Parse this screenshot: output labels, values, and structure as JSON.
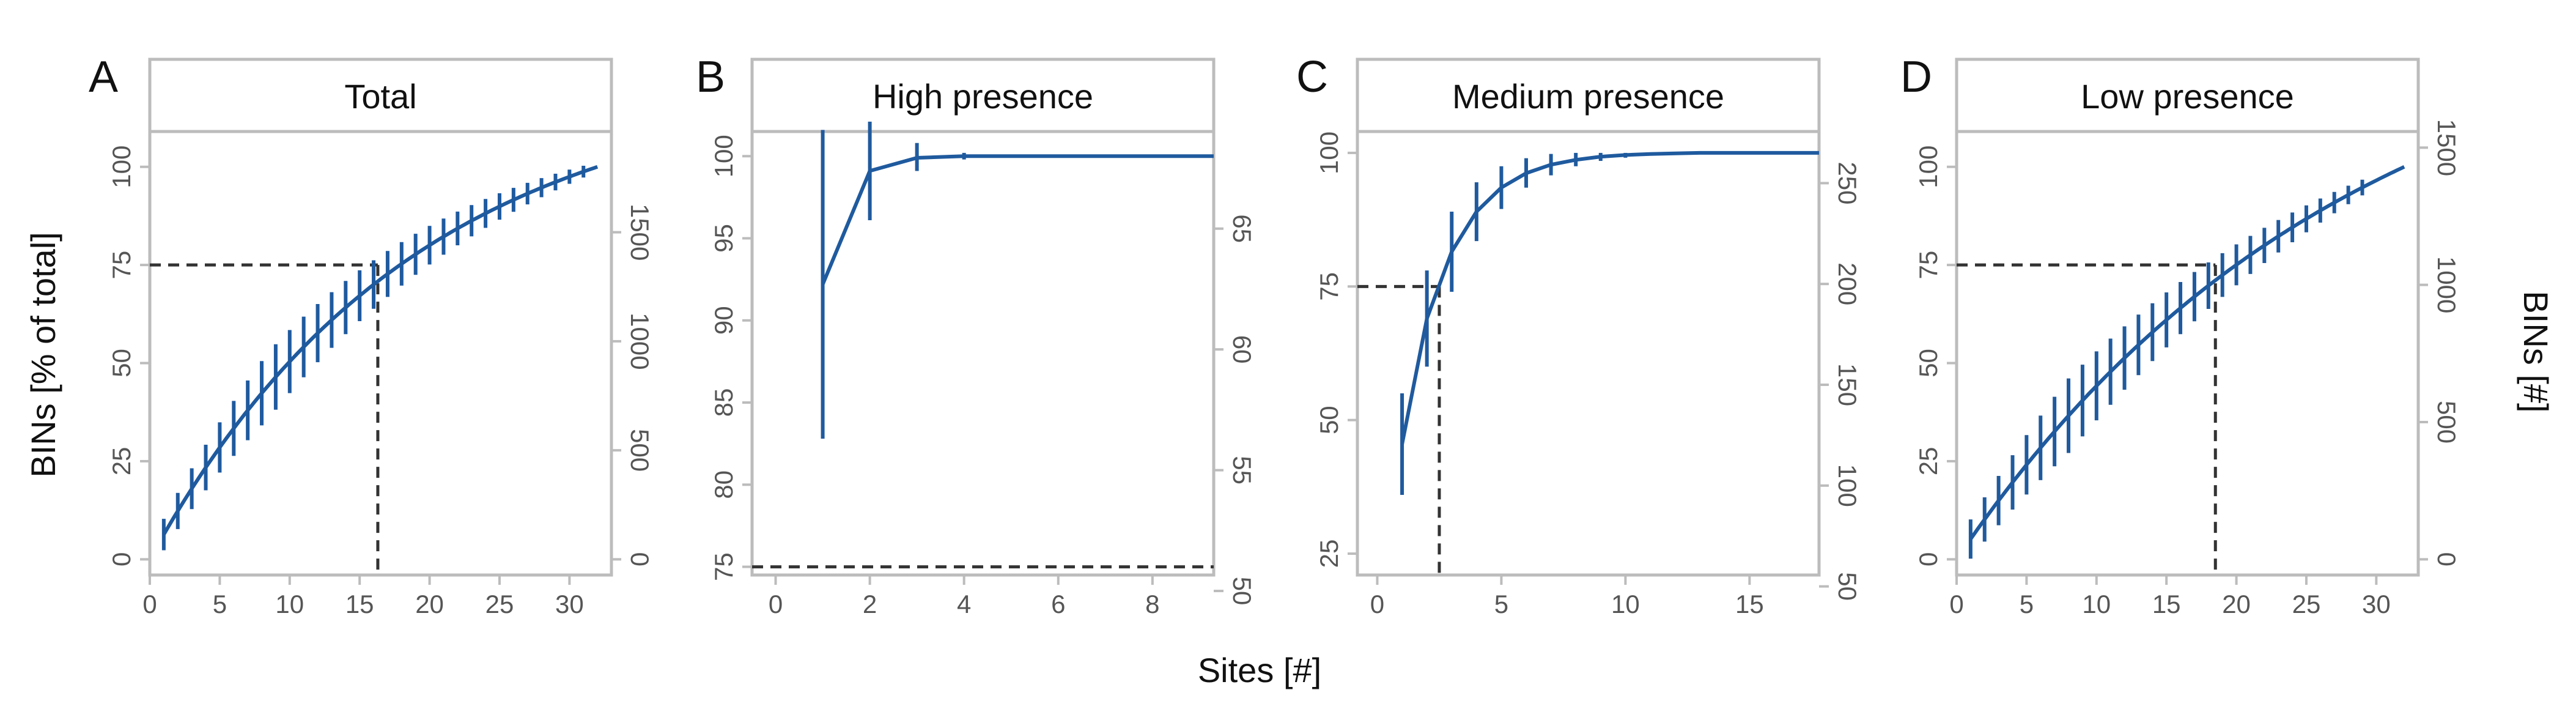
{
  "figure": {
    "shared_xlabel": "Sites [#]",
    "shared_ylabel_left": "BINs [% of total]",
    "shared_ylabel_right": "BINs [#]",
    "line_color": "#1f5a9e",
    "frame_color": "#bcbcbc",
    "tick_color": "#555555",
    "dash_color": "#333333"
  },
  "chart_data": [
    {
      "type": "line",
      "panel_letter": "A",
      "title": "Total",
      "xlim": [
        0,
        33
      ],
      "xticks": [
        0,
        5,
        10,
        15,
        20,
        25,
        30
      ],
      "ylim": [
        -4,
        109
      ],
      "yticks": [
        0,
        25,
        50,
        75,
        100
      ],
      "right_axis": {
        "label_ticks": [
          0,
          500,
          1000,
          1500
        ],
        "scale_max_value": 1800,
        "scale_max_percent": 100
      },
      "curve": {
        "k": 0.053,
        "x_start": 1,
        "x_end": 32
      },
      "error_bars": {
        "x_start": 1,
        "x_end": 31,
        "half_width_at_start": 4,
        "half_width_peak": 8.5,
        "half_width_end": 1.5
      },
      "threshold_line": {
        "y": 75,
        "x": 16.3
      }
    },
    {
      "type": "line",
      "panel_letter": "B",
      "title": "High presence",
      "xlim": [
        -0.5,
        9.3
      ],
      "xticks": [
        0,
        2,
        4,
        6,
        8
      ],
      "ylim": [
        74.5,
        101.5
      ],
      "yticks": [
        75,
        80,
        85,
        90,
        95,
        100
      ],
      "right_axis": {
        "label_ticks": [
          50,
          55,
          60,
          65
        ],
        "scale_max_value": 68,
        "scale_max_percent": 100
      },
      "points": [
        {
          "x": 1,
          "y": 92.2
        },
        {
          "x": 2,
          "y": 99.1
        },
        {
          "x": 3,
          "y": 99.9
        },
        {
          "x": 4,
          "y": 100
        },
        {
          "x": 9.3,
          "y": 100
        }
      ],
      "error_bars": [
        {
          "x": 1,
          "low": 82.8,
          "high": 101.6
        },
        {
          "x": 2,
          "low": 96.1,
          "high": 102.1
        },
        {
          "x": 3,
          "low": 99.1,
          "high": 100.8
        },
        {
          "x": 4,
          "low": 99.8,
          "high": 100.2
        }
      ],
      "threshold_line": {
        "y": 75,
        "x": null
      }
    },
    {
      "type": "line",
      "panel_letter": "C",
      "title": "Medium presence",
      "xlim": [
        -0.8,
        17.8
      ],
      "xticks": [
        0,
        5,
        10,
        15
      ],
      "ylim": [
        21,
        104
      ],
      "yticks": [
        25,
        50,
        75,
        100
      ],
      "right_axis": {
        "label_ticks": [
          50,
          100,
          150,
          200,
          250
        ],
        "scale_max_value": 265,
        "scale_max_percent": 100
      },
      "points": [
        {
          "x": 1,
          "y": 45.5
        },
        {
          "x": 2,
          "y": 69
        },
        {
          "x": 3,
          "y": 81.5
        },
        {
          "x": 4,
          "y": 89
        },
        {
          "x": 5,
          "y": 93.5
        },
        {
          "x": 6,
          "y": 96.2
        },
        {
          "x": 7,
          "y": 97.8
        },
        {
          "x": 8,
          "y": 98.7
        },
        {
          "x": 9,
          "y": 99.3
        },
        {
          "x": 10,
          "y": 99.6
        },
        {
          "x": 11,
          "y": 99.8
        },
        {
          "x": 12,
          "y": 99.9
        },
        {
          "x": 13,
          "y": 100
        },
        {
          "x": 17.8,
          "y": 100
        }
      ],
      "error_bars": [
        {
          "x": 1,
          "low": 36,
          "high": 55
        },
        {
          "x": 2,
          "low": 60,
          "high": 78
        },
        {
          "x": 3,
          "low": 74,
          "high": 89
        },
        {
          "x": 4,
          "low": 83.5,
          "high": 94.5
        },
        {
          "x": 5,
          "low": 89.5,
          "high": 97.5
        },
        {
          "x": 6,
          "low": 93.5,
          "high": 99
        },
        {
          "x": 7,
          "low": 95.8,
          "high": 99.8
        },
        {
          "x": 8,
          "low": 97.5,
          "high": 100
        },
        {
          "x": 9,
          "low": 98.5,
          "high": 100
        },
        {
          "x": 10,
          "low": 99.1,
          "high": 100
        },
        {
          "x": 11,
          "low": 99.5,
          "high": 100
        },
        {
          "x": 12,
          "low": 99.7,
          "high": 100
        }
      ],
      "threshold_line": {
        "y": 75,
        "x": 2.5
      }
    },
    {
      "type": "line",
      "panel_letter": "D",
      "title": "Low presence",
      "xlim": [
        0,
        33
      ],
      "xticks": [
        0,
        5,
        10,
        15,
        20,
        25,
        30
      ],
      "ylim": [
        -4,
        109
      ],
      "yticks": [
        0,
        25,
        50,
        75,
        100
      ],
      "right_axis": {
        "label_ticks": [
          0,
          500,
          1000,
          1500
        ],
        "scale_max_value": 1430,
        "scale_max_percent": 100
      },
      "curve": {
        "k": 0.036,
        "x_start": 1,
        "x_end": 32
      },
      "error_bars": {
        "x_start": 1,
        "x_end": 29,
        "half_width_at_start": 5,
        "half_width_peak": 9.5,
        "half_width_end": 2
      },
      "threshold_line": {
        "y": 75,
        "x": 18.5
      }
    }
  ]
}
